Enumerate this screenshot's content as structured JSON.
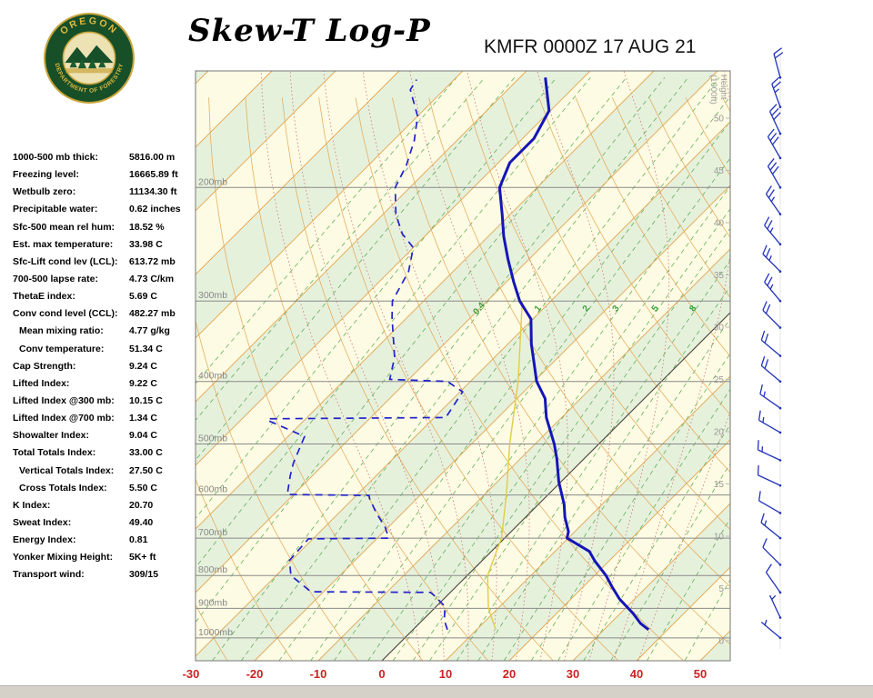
{
  "header": {
    "title": "Skew-T Log-P",
    "station_line": "KMFR 0000Z 17 AUG 21",
    "logo": {
      "text_top": "OREGON",
      "text_bottom": "DEPARTMENT OF FORESTRY"
    }
  },
  "indices": [
    {
      "label": "1000-500 mb thick:",
      "value": "5816.00 m",
      "indent": false
    },
    {
      "label": "Freezing level:",
      "value": "16665.89 ft",
      "indent": false
    },
    {
      "label": "Wetbulb zero:",
      "value": "11134.30 ft",
      "indent": false
    },
    {
      "label": "Precipitable water:",
      "value": "0.62 inches",
      "indent": false
    },
    {
      "label": "Sfc-500 mean rel hum:",
      "value": "18.52 %",
      "indent": false
    },
    {
      "label": "Est. max temperature:",
      "value": "33.98 C",
      "indent": false
    },
    {
      "label": "Sfc-Lift cond lev (LCL):",
      "value": "613.72 mb",
      "indent": false
    },
    {
      "label": "700-500 lapse rate:",
      "value": "4.73 C/km",
      "indent": false
    },
    {
      "label": "ThetaE index:",
      "value": "5.69 C",
      "indent": false
    },
    {
      "label": "Conv cond level (CCL):",
      "value": "482.27 mb",
      "indent": false
    },
    {
      "label": "Mean mixing ratio:",
      "value": "4.77 g/kg",
      "indent": true
    },
    {
      "label": "Conv temperature:",
      "value": "51.34 C",
      "indent": true
    },
    {
      "label": "Cap Strength:",
      "value": "9.24 C",
      "indent": false
    },
    {
      "label": "Lifted Index:",
      "value": "9.22 C",
      "indent": false
    },
    {
      "label": "Lifted Index @300 mb:",
      "value": "10.15 C",
      "indent": false
    },
    {
      "label": "Lifted Index @700 mb:",
      "value": "1.34 C",
      "indent": false
    },
    {
      "label": "Showalter Index:",
      "value": "9.04 C",
      "indent": false
    },
    {
      "label": "Total Totals Index:",
      "value": "33.00 C",
      "indent": false
    },
    {
      "label": "Vertical Totals Index:",
      "value": "27.50 C",
      "indent": true
    },
    {
      "label": "Cross Totals Index:",
      "value": "5.50 C",
      "indent": true
    },
    {
      "label": "K Index:",
      "value": "20.70",
      "indent": false
    },
    {
      "label": "Sweat Index:",
      "value": "49.40",
      "indent": false
    },
    {
      "label": "Energy Index:",
      "value": "0.81",
      "indent": false
    },
    {
      "label": "Yonker Mixing Height:",
      "value": "5K+ ft",
      "indent": false
    },
    {
      "label": "Transport wind:",
      "value": "309/15",
      "indent": false
    }
  ],
  "chart_data": {
    "type": "skewt-log-p",
    "title": "Skew-T Log-P",
    "station": "KMFR",
    "valid_time": "0000Z 17 AUG 21",
    "pressure_axis": {
      "levels_mb": [
        200,
        300,
        400,
        500,
        600,
        700,
        800,
        900,
        1000
      ],
      "label_suffix": "mb",
      "top_mb": 132,
      "bottom_mb": 1085
    },
    "temp_axis": {
      "ticks_c": [
        -30,
        -20,
        -10,
        0,
        10,
        20,
        30,
        40,
        50
      ],
      "step_c": 10
    },
    "height_axis": {
      "title": "Height",
      "subtitle": "(1000ft)",
      "ticks_kft": [
        50,
        45,
        40,
        35,
        30,
        25,
        20,
        15,
        10,
        5,
        0
      ]
    },
    "isotherms": {
      "min": -120,
      "max": 60,
      "step": 10
    },
    "dry_adiabats": {
      "min": -40,
      "max": 150,
      "step": 10
    },
    "moist_adiabats_t1000_c": [
      2,
      6,
      10,
      14,
      18,
      22,
      26,
      30,
      34,
      38
    ],
    "mixing_ratio_gkg": [
      0.005,
      0.01,
      0.02,
      0.05,
      0.1,
      0.2,
      0.4,
      0.6,
      1,
      1.5,
      2,
      3,
      4,
      5,
      6,
      8,
      10,
      13,
      17,
      22,
      28,
      36,
      50,
      70
    ],
    "mixing_ratio_labeled": [
      0.4,
      1,
      2,
      3,
      5,
      8
    ],
    "profiles": {
      "temperature_c": [
        [
          971,
          37.0
        ],
        [
          950,
          34.8
        ],
        [
          916,
          32.0
        ],
        [
          870,
          27.6
        ],
        [
          835,
          24.7
        ],
        [
          800,
          21.8
        ],
        [
          760,
          17.8
        ],
        [
          734,
          15.4
        ],
        [
          700,
          9.8
        ],
        [
          684,
          9.0
        ],
        [
          650,
          6.2
        ],
        [
          620,
          4.0
        ],
        [
          573,
          -0.3
        ],
        [
          527,
          -4.3
        ],
        [
          500,
          -7.0
        ],
        [
          455,
          -12.4
        ],
        [
          425,
          -15.6
        ],
        [
          400,
          -19.6
        ],
        [
          373,
          -23.1
        ],
        [
          350,
          -26.3
        ],
        [
          320,
          -30.3
        ],
        [
          300,
          -34.9
        ],
        [
          280,
          -38.9
        ],
        [
          258,
          -43.4
        ],
        [
          238,
          -47.6
        ],
        [
          220,
          -51.3
        ],
        [
          200,
          -55.9
        ],
        [
          183,
          -58.2
        ],
        [
          168,
          -58.2
        ],
        [
          152,
          -60.2
        ],
        [
          135,
          -66.0
        ]
      ],
      "dewpoint_c": [
        [
          971,
          5.4
        ],
        [
          940,
          3.5
        ],
        [
          893,
          1.3
        ],
        [
          860,
          -2.0
        ],
        [
          850,
          -3.1
        ],
        [
          848,
          -22.0
        ],
        [
          800,
          -27.7
        ],
        [
          758,
          -30.3
        ],
        [
          702,
          -30.7
        ],
        [
          700,
          -18.2
        ],
        [
          672,
          -20.6
        ],
        [
          640,
          -24.1
        ],
        [
          608,
          -27.4
        ],
        [
          601,
          -28.0
        ],
        [
          599,
          -41.0
        ],
        [
          560,
          -43.5
        ],
        [
          535,
          -45.0
        ],
        [
          487,
          -47.4
        ],
        [
          460,
          -55.6
        ],
        [
          457,
          -56.0
        ],
        [
          455,
          -28.2
        ],
        [
          415,
          -29.6
        ],
        [
          400,
          -33.6
        ],
        [
          397,
          -43.0
        ],
        [
          367,
          -45.7
        ],
        [
          318,
          -52.4
        ],
        [
          300,
          -54.9
        ],
        [
          270,
          -57.0
        ],
        [
          248,
          -60.0
        ],
        [
          236,
          -63.9
        ],
        [
          220,
          -68.0
        ],
        [
          200,
          -72.3
        ],
        [
          185,
          -74.0
        ],
        [
          169,
          -76.7
        ],
        [
          155,
          -80.0
        ],
        [
          141,
          -85.3
        ],
        [
          136,
          -85.9
        ]
      ],
      "wetbulb_c": [
        [
          971,
          13.0
        ],
        [
          900,
          8.5
        ],
        [
          800,
          3.2
        ],
        [
          700,
          -0.5
        ],
        [
          600,
          -6.5
        ],
        [
          500,
          -14.0
        ],
        [
          400,
          -22.5
        ],
        [
          300,
          -34.5
        ]
      ]
    },
    "winds_p_dir_spd": [
      [
        135,
        345,
        20
      ],
      [
        150,
        340,
        25
      ],
      [
        165,
        335,
        30
      ],
      [
        180,
        330,
        30
      ],
      [
        200,
        330,
        30
      ],
      [
        220,
        325,
        25
      ],
      [
        245,
        320,
        25
      ],
      [
        270,
        315,
        25
      ],
      [
        300,
        320,
        25
      ],
      [
        330,
        315,
        20
      ],
      [
        365,
        310,
        20
      ],
      [
        400,
        310,
        20
      ],
      [
        440,
        305,
        15
      ],
      [
        480,
        300,
        15
      ],
      [
        530,
        295,
        15
      ],
      [
        580,
        295,
        10
      ],
      [
        640,
        300,
        10
      ],
      [
        700,
        309,
        15
      ],
      [
        770,
        315,
        10
      ],
      [
        850,
        325,
        10
      ],
      [
        930,
        335,
        5
      ],
      [
        1000,
        310,
        5
      ]
    ],
    "colors": {
      "band_cream": "#FDFBE3",
      "band_green": "#E6F1DC",
      "isotherm": "#E2A24E",
      "dry_adiabat": "#E2A24E",
      "moist_adiabat": "#CC6666",
      "mixing_ratio": "#3F9E3F",
      "isobar": "#8A8A8A",
      "zero_line": "#444444",
      "temperature": "#1515B8",
      "dewpoint": "#2222CC",
      "wetbulb": "#E2CC45",
      "wind_barb": "#2233BB",
      "axis_text": "#999999",
      "pressure_label_text": "#888888",
      "temp_tick_text": "#CC2222"
    }
  }
}
